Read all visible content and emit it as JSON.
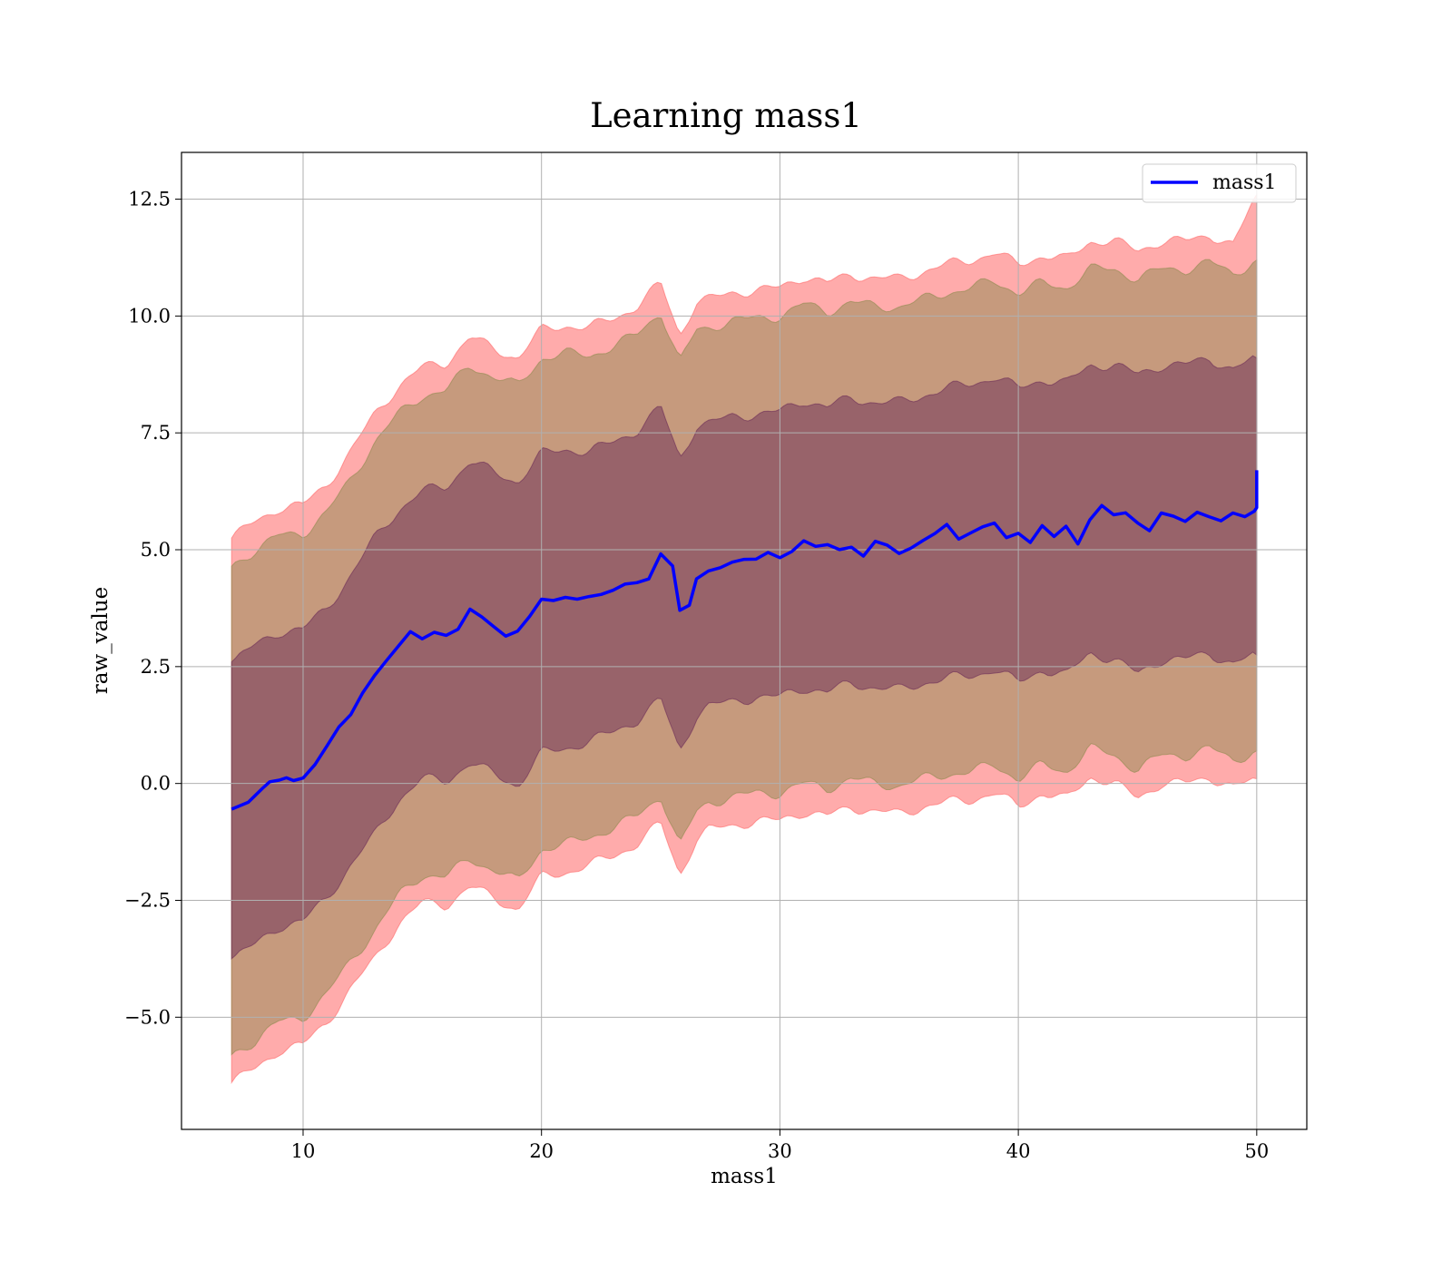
{
  "chart_data": {
    "type": "line",
    "title": "Learning mass1",
    "xlabel": "mass1",
    "ylabel": "raw_value",
    "xlim": [
      4.9,
      52.1
    ],
    "ylim": [
      -7.4,
      13.5
    ],
    "grid": true,
    "legend_position": "top-right",
    "xticks": [
      {
        "value": 10,
        "label": "10"
      },
      {
        "value": 20,
        "label": "20"
      },
      {
        "value": 30,
        "label": "30"
      },
      {
        "value": 40,
        "label": "40"
      },
      {
        "value": 50,
        "label": "50"
      }
    ],
    "yticks": [
      {
        "value": -5.0,
        "label": "−5.0"
      },
      {
        "value": -2.5,
        "label": "−2.5"
      },
      {
        "value": 0.0,
        "label": "0.0"
      },
      {
        "value": 2.5,
        "label": "2.5"
      },
      {
        "value": 5.0,
        "label": "5.0"
      },
      {
        "value": 7.5,
        "label": "7.5"
      },
      {
        "value": 10.0,
        "label": "10.0"
      },
      {
        "value": 12.5,
        "label": "12.5"
      }
    ],
    "series": [
      {
        "name": "mass1",
        "color": "#0000ff",
        "x": [
          7.0,
          7.7,
          8.3,
          8.6,
          9.0,
          9.3,
          9.6,
          10.0,
          10.5,
          11.0,
          11.5,
          12.0,
          12.5,
          13.0,
          13.5,
          14.0,
          14.5,
          15.0,
          15.5,
          16.0,
          16.5,
          17.0,
          17.5,
          18.0,
          18.5,
          19.0,
          19.5,
          20.0,
          20.5,
          21.0,
          21.5,
          22.0,
          22.5,
          23.0,
          23.5,
          24.0,
          24.5,
          25.0,
          25.5,
          25.8,
          26.2,
          26.5,
          27.0,
          27.5,
          28.0,
          28.5,
          29.0,
          29.5,
          30.0,
          30.5,
          31.0,
          31.5,
          32.0,
          32.5,
          33.0,
          33.5,
          34.0,
          34.5,
          35.0,
          35.5,
          36.0,
          36.5,
          37.0,
          37.5,
          38.0,
          38.5,
          39.0,
          39.5,
          40.0,
          40.5,
          41.0,
          41.5,
          42.0,
          42.5,
          43.0,
          43.5,
          44.0,
          44.5,
          45.0,
          45.5,
          46.0,
          46.5,
          47.0,
          47.5,
          48.0,
          48.5,
          49.0,
          49.5,
          49.9,
          50.0,
          50.0
        ],
        "y": [
          -0.55,
          -0.45,
          -0.15,
          0.0,
          0.05,
          0.12,
          0.08,
          0.15,
          0.45,
          0.85,
          1.25,
          1.5,
          1.95,
          2.3,
          2.6,
          2.9,
          3.2,
          3.05,
          3.2,
          3.15,
          3.3,
          3.75,
          3.6,
          3.4,
          3.2,
          3.3,
          3.6,
          3.95,
          3.9,
          3.95,
          3.9,
          3.95,
          4.0,
          4.1,
          4.25,
          4.3,
          4.4,
          4.95,
          4.7,
          3.75,
          3.85,
          4.4,
          4.55,
          4.6,
          4.7,
          4.75,
          4.75,
          4.9,
          4.8,
          4.95,
          5.2,
          5.1,
          5.15,
          5.05,
          5.1,
          4.9,
          5.2,
          5.1,
          4.9,
          5.0,
          5.15,
          5.3,
          5.5,
          5.2,
          5.35,
          5.5,
          5.6,
          5.3,
          5.4,
          5.2,
          5.55,
          5.3,
          5.5,
          5.1,
          5.6,
          5.9,
          5.7,
          5.75,
          5.55,
          5.4,
          5.8,
          5.75,
          5.65,
          5.85,
          5.75,
          5.65,
          5.8,
          5.7,
          5.8,
          5.9,
          6.7
        ]
      }
    ],
    "bands": [
      {
        "color": "#ff6666",
        "opacity": 0.55,
        "x": [
          7.0,
          8.0,
          9.0,
          10.0,
          11.0,
          12.0,
          13.0,
          14.0,
          15.0,
          16.0,
          17.0,
          18.0,
          19.0,
          20.0,
          21.0,
          22.0,
          23.0,
          24.0,
          25.0,
          25.8,
          26.5,
          27.0,
          28.0,
          29.0,
          30.0,
          31.0,
          32.0,
          33.0,
          34.0,
          35.0,
          36.0,
          37.0,
          38.0,
          39.0,
          40.0,
          41.0,
          42.0,
          43.0,
          44.0,
          45.0,
          46.0,
          47.0,
          48.0,
          49.0,
          50.0
        ],
        "upper": [
          5.25,
          5.6,
          5.9,
          5.95,
          6.4,
          7.1,
          7.9,
          8.5,
          8.9,
          9.0,
          9.55,
          9.3,
          9.1,
          9.7,
          9.8,
          9.75,
          9.95,
          10.2,
          10.7,
          9.6,
          10.3,
          10.35,
          10.5,
          10.55,
          10.6,
          10.85,
          10.7,
          10.9,
          10.8,
          10.8,
          10.95,
          11.1,
          11.2,
          11.35,
          11.1,
          11.3,
          11.2,
          11.6,
          11.6,
          11.4,
          11.6,
          11.6,
          11.75,
          11.5,
          12.6
        ],
        "lower": [
          -6.4,
          -6.1,
          -5.7,
          -5.6,
          -5.1,
          -4.4,
          -3.75,
          -3.0,
          -2.55,
          -2.6,
          -2.2,
          -2.45,
          -2.7,
          -2.0,
          -1.9,
          -1.75,
          -1.55,
          -1.3,
          -0.85,
          -1.95,
          -1.2,
          -1.0,
          -0.9,
          -0.8,
          -0.8,
          -0.6,
          -0.7,
          -0.5,
          -0.6,
          -0.65,
          -0.5,
          -0.4,
          -0.35,
          -0.2,
          -0.5,
          -0.2,
          -0.35,
          0.15,
          0.0,
          -0.3,
          0.0,
          0.0,
          0.15,
          -0.1,
          0.1
        ]
      },
      {
        "color": "#8e8a4f",
        "opacity": 0.5,
        "x": [
          7.0,
          8.0,
          9.0,
          10.0,
          11.0,
          12.0,
          13.0,
          14.0,
          15.0,
          16.0,
          17.0,
          18.0,
          19.0,
          20.0,
          21.0,
          22.0,
          23.0,
          24.0,
          25.0,
          25.8,
          26.5,
          27.0,
          28.0,
          29.0,
          30.0,
          31.0,
          32.0,
          33.0,
          34.0,
          35.0,
          36.0,
          37.0,
          38.0,
          39.0,
          40.0,
          41.0,
          42.0,
          43.0,
          44.0,
          45.0,
          46.0,
          47.0,
          48.0,
          49.0,
          50.0
        ],
        "upper": [
          4.65,
          5.0,
          5.3,
          5.35,
          5.8,
          6.5,
          7.3,
          7.9,
          8.3,
          8.4,
          8.95,
          8.7,
          8.5,
          9.1,
          9.2,
          9.15,
          9.35,
          9.6,
          10.1,
          9.0,
          9.7,
          9.75,
          9.9,
          9.95,
          10.0,
          10.25,
          10.1,
          10.3,
          10.2,
          10.2,
          10.35,
          10.5,
          10.6,
          10.75,
          10.5,
          10.7,
          10.6,
          11.0,
          11.0,
          10.8,
          11.0,
          11.0,
          11.15,
          10.9,
          11.2
        ],
        "lower": [
          -5.8,
          -5.5,
          -5.1,
          -5.0,
          -4.5,
          -3.8,
          -3.15,
          -2.4,
          -1.95,
          -2.0,
          -1.6,
          -1.85,
          -2.1,
          -1.4,
          -1.3,
          -1.15,
          -0.95,
          -0.7,
          -0.25,
          -1.35,
          -0.6,
          -0.4,
          -0.3,
          -0.2,
          -0.2,
          0.0,
          -0.1,
          0.1,
          0.0,
          -0.05,
          0.1,
          0.2,
          0.25,
          0.4,
          0.1,
          0.4,
          0.25,
          0.75,
          0.6,
          0.3,
          0.6,
          0.6,
          0.75,
          0.5,
          0.7
        ]
      },
      {
        "color": "#6a2b57",
        "opacity": 0.5,
        "x": [
          7.0,
          8.0,
          9.0,
          10.0,
          11.0,
          12.0,
          13.0,
          14.0,
          15.0,
          16.0,
          17.0,
          18.0,
          19.0,
          20.0,
          21.0,
          22.0,
          23.0,
          24.0,
          25.0,
          25.8,
          26.5,
          27.0,
          28.0,
          29.0,
          30.0,
          31.0,
          32.0,
          33.0,
          34.0,
          35.0,
          36.0,
          37.0,
          38.0,
          39.0,
          40.0,
          41.0,
          42.0,
          43.0,
          44.0,
          45.0,
          46.0,
          47.0,
          48.0,
          49.0,
          50.0
        ],
        "upper": [
          2.6,
          2.95,
          3.25,
          3.3,
          3.75,
          4.45,
          5.25,
          5.85,
          6.25,
          6.35,
          6.9,
          6.65,
          6.45,
          7.05,
          7.15,
          7.1,
          7.3,
          7.55,
          8.05,
          6.95,
          7.65,
          7.7,
          7.85,
          7.9,
          7.95,
          8.2,
          8.05,
          8.25,
          8.15,
          8.15,
          8.3,
          8.45,
          8.55,
          8.7,
          8.45,
          8.65,
          8.55,
          8.95,
          8.95,
          8.75,
          8.95,
          8.95,
          9.1,
          8.85,
          9.1
        ],
        "lower": [
          -3.75,
          -3.45,
          -3.05,
          -2.95,
          -2.45,
          -1.75,
          -1.1,
          -0.35,
          0.1,
          0.05,
          0.45,
          0.2,
          -0.05,
          0.65,
          0.75,
          0.9,
          1.1,
          1.35,
          1.8,
          0.7,
          1.45,
          1.65,
          1.75,
          1.85,
          1.85,
          2.05,
          1.95,
          2.15,
          2.05,
          2.0,
          2.15,
          2.25,
          2.3,
          2.45,
          2.15,
          2.45,
          2.3,
          2.8,
          2.65,
          2.35,
          2.65,
          2.65,
          2.8,
          2.55,
          2.75
        ]
      }
    ]
  }
}
